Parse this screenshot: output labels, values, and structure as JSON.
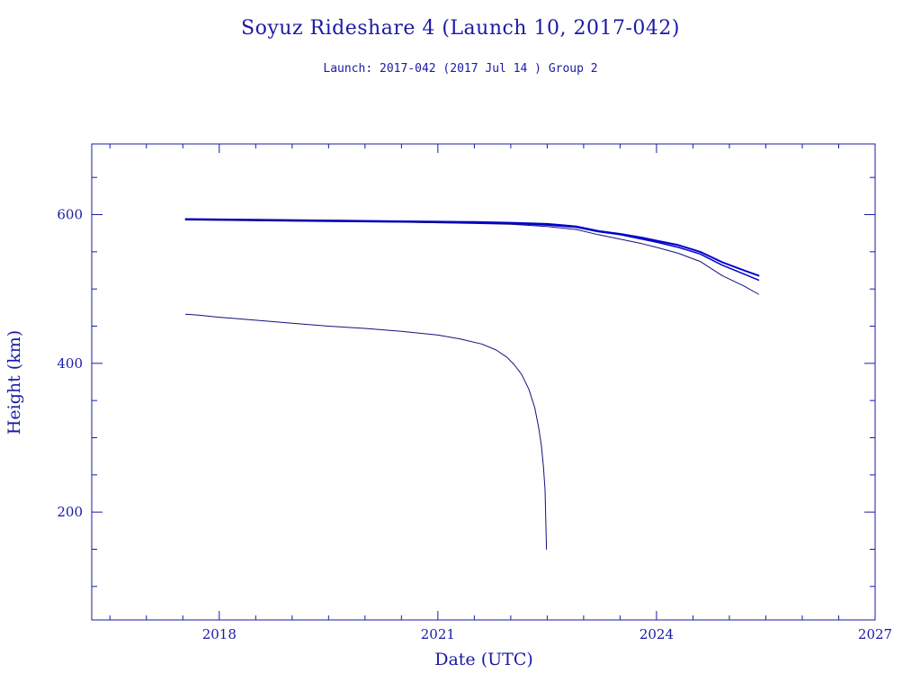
{
  "chart_data": {
    "type": "line",
    "title": "Soyuz Rideshare 4 (Launch 10, 2017-042)",
    "subtitle": "Launch: 2017-042  (2017 Jul 14 )  Group 2",
    "xlabel": "Date (UTC)",
    "ylabel": "Height (km)",
    "xlim": [
      2016.25,
      2027.0
    ],
    "ylim": [
      55,
      695
    ],
    "x_ticks": [
      {
        "value": 2018,
        "label": "2018"
      },
      {
        "value": 2021,
        "label": "2021"
      },
      {
        "value": 2024,
        "label": "2024"
      },
      {
        "value": 2027,
        "label": "2027"
      }
    ],
    "x_minor_step": 0.5,
    "y_ticks": [
      {
        "value": 200,
        "label": "200"
      },
      {
        "value": 400,
        "label": "400"
      },
      {
        "value": 600,
        "label": "600"
      }
    ],
    "y_minor_step": 50,
    "grid": false,
    "colors": {
      "axis": "#1a1aa6",
      "line_primary": "#0000cc",
      "line_dark": "#101080"
    },
    "series": [
      {
        "color": "#0000cc",
        "width": 2,
        "x": [
          2017.54,
          2018.5,
          2019.5,
          2020.5,
          2021.0,
          2021.5,
          2022.0,
          2022.5,
          2022.9,
          2023.2,
          2023.5,
          2023.8,
          2024.0,
          2024.3,
          2024.6,
          2024.9,
          2025.2,
          2025.4
        ],
        "y": [
          594,
          593,
          592,
          591,
          590.5,
          590,
          589,
          587.5,
          584,
          578,
          574,
          569,
          565,
          559,
          550,
          536,
          525,
          518
        ]
      },
      {
        "color": "#0000cc",
        "width": 1.5,
        "x": [
          2017.54,
          2018.5,
          2019.5,
          2020.5,
          2021.0,
          2021.5,
          2022.0,
          2022.5,
          2022.9,
          2023.2,
          2023.5,
          2023.8,
          2024.0,
          2024.3,
          2024.6,
          2024.9,
          2025.2,
          2025.4
        ],
        "y": [
          593,
          592,
          591,
          590,
          589.5,
          589,
          588,
          586,
          583,
          577,
          573,
          567,
          563,
          556,
          547,
          532,
          520,
          512
        ]
      },
      {
        "color": "#101080",
        "width": 1,
        "x": [
          2017.54,
          2018.5,
          2019.5,
          2020.5,
          2021.0,
          2021.5,
          2022.0,
          2022.5,
          2022.9,
          2023.2,
          2023.5,
          2023.8,
          2024.0,
          2024.3,
          2024.6,
          2024.9,
          2025.2,
          2025.4
        ],
        "y": [
          593,
          592,
          591,
          590,
          589,
          588,
          587,
          584,
          580,
          573,
          567,
          561,
          556,
          548,
          537,
          518,
          504,
          493
        ]
      },
      {
        "color": "#101080",
        "width": 1,
        "x": [
          2017.54,
          2017.7,
          2018.0,
          2018.5,
          2019.0,
          2019.5,
          2020.0,
          2020.5,
          2021.0,
          2021.3,
          2021.6,
          2021.8,
          2021.95,
          2022.05,
          2022.15,
          2022.25,
          2022.33,
          2022.38,
          2022.42,
          2022.45,
          2022.47,
          2022.48,
          2022.49
        ],
        "y": [
          466,
          465,
          462,
          458,
          454,
          450,
          447,
          443,
          438,
          433,
          426,
          418,
          408,
          398,
          385,
          365,
          340,
          315,
          290,
          260,
          230,
          190,
          150
        ]
      }
    ]
  }
}
